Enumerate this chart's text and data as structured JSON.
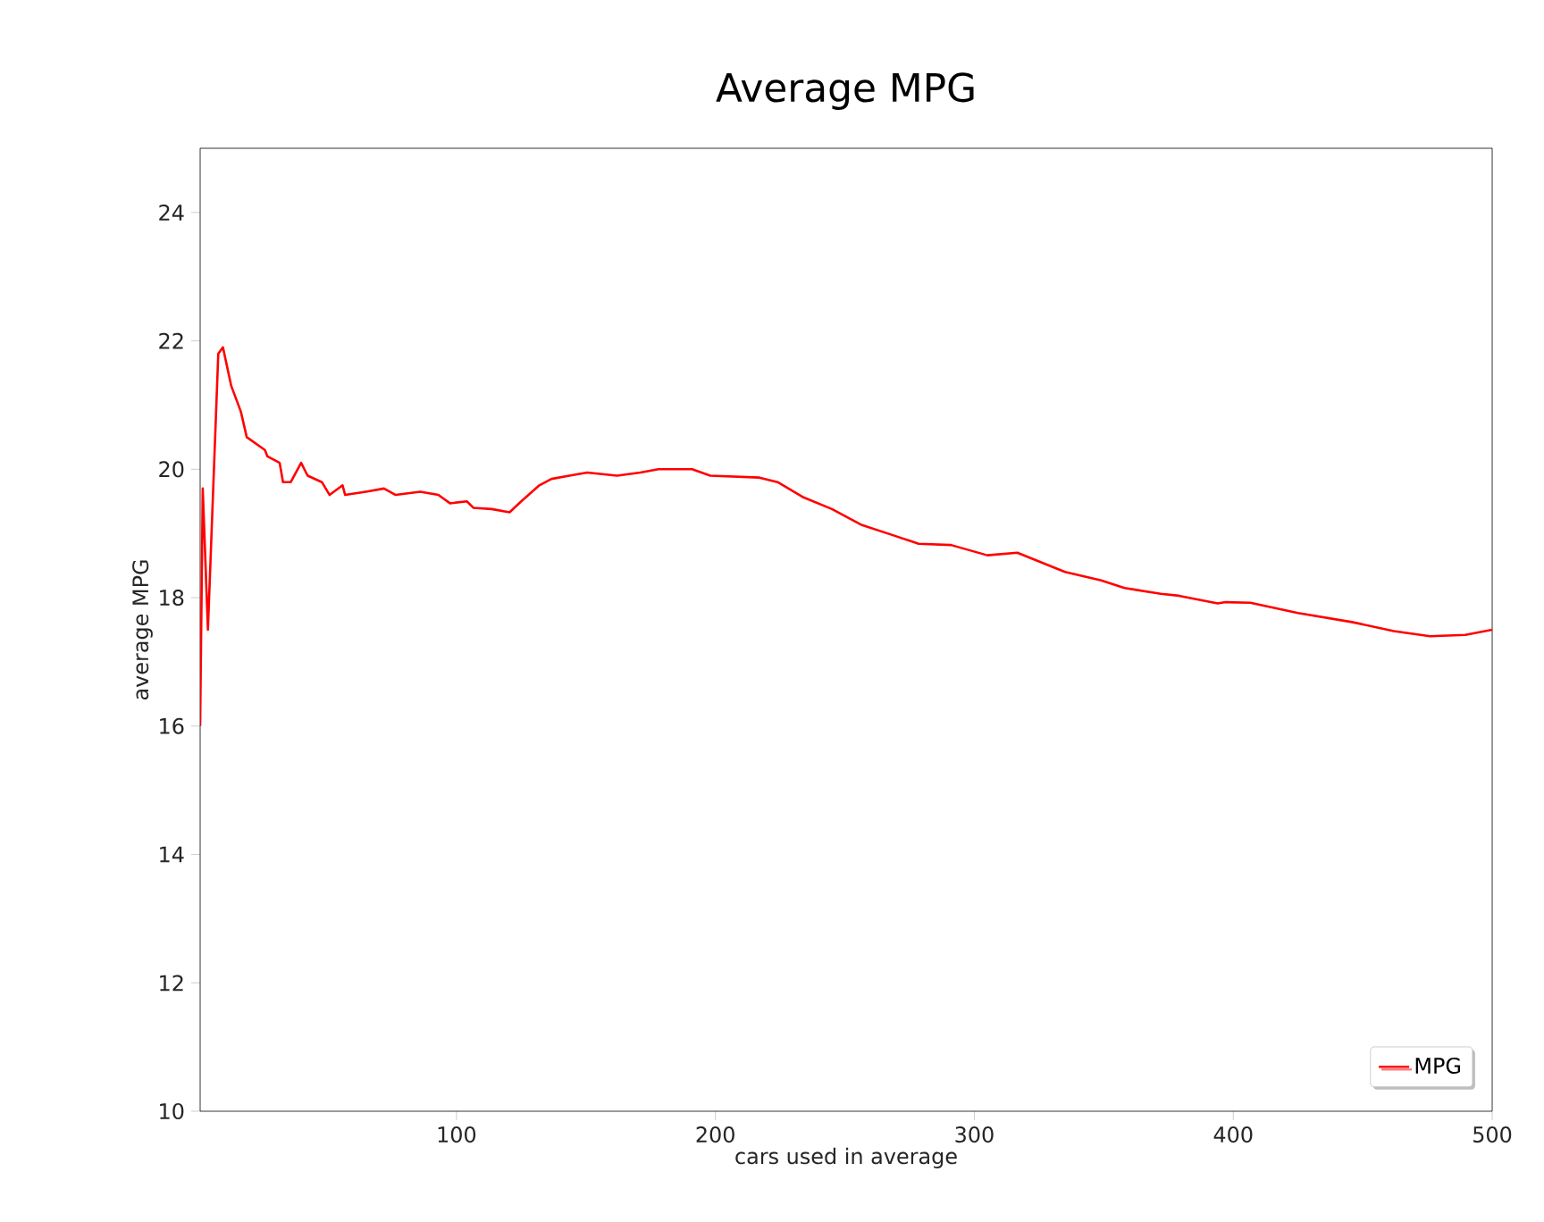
{
  "chart_data": {
    "type": "line",
    "title": "Average MPG",
    "xlabel": "cars used in average",
    "ylabel": "average MPG",
    "x": [
      1,
      2,
      4,
      8,
      9.8,
      13,
      16.7,
      19,
      26,
      27,
      31.7,
      33,
      36,
      40,
      42.5,
      48,
      51,
      56,
      57,
      65,
      72,
      76.5,
      86,
      93,
      97.5,
      104,
      106.5,
      113.6,
      120.5,
      125,
      132,
      136.7,
      143.6,
      150.5,
      162,
      171,
      178,
      191,
      198,
      217,
      224,
      233.6,
      245,
      256.6,
      268,
      278.5,
      291,
      305,
      316.6,
      335,
      349,
      358,
      372,
      379,
      394,
      397,
      406.6,
      425,
      445.8,
      462,
      476,
      489.6,
      500
    ],
    "series": [
      {
        "name": "MPG",
        "color": "#ff0000",
        "values": [
          16.0,
          19.7,
          17.5,
          21.8,
          21.9,
          21.3,
          20.9,
          20.5,
          20.3,
          20.2,
          20.1,
          19.8,
          19.8,
          20.1,
          19.9,
          19.8,
          19.6,
          19.75,
          19.6,
          19.65,
          19.7,
          19.6,
          19.65,
          19.6,
          19.47,
          19.5,
          19.4,
          19.38,
          19.33,
          19.5,
          19.75,
          19.85,
          19.9,
          19.95,
          19.9,
          19.95,
          20.0,
          20.0,
          19.9,
          19.87,
          19.8,
          19.57,
          19.38,
          19.13,
          18.98,
          18.84,
          18.82,
          18.66,
          18.7,
          18.4,
          18.27,
          18.15,
          18.06,
          18.03,
          17.91,
          17.93,
          17.92,
          17.76,
          17.62,
          17.48,
          17.4,
          17.42,
          17.5
        ]
      }
    ],
    "xlim": [
      1,
      500
    ],
    "ylim": [
      10,
      25
    ],
    "xticks": [
      100,
      200,
      300,
      400,
      500
    ],
    "yticks": [
      10,
      12,
      14,
      16,
      18,
      20,
      22,
      24
    ],
    "grid": false,
    "legend": "bottom right",
    "marker": "none",
    "line_style": "solid"
  }
}
